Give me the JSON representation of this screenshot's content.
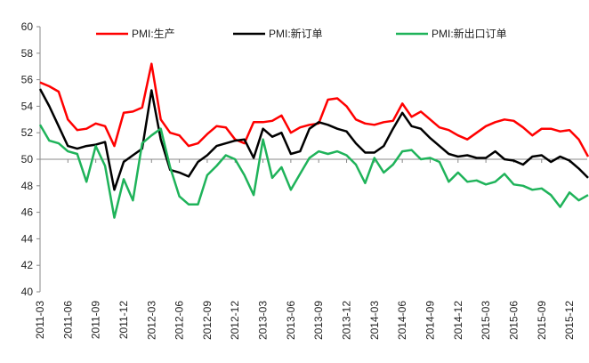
{
  "chart_data": {
    "type": "line",
    "categories": [
      "2011-03",
      null,
      null,
      "2011-06",
      null,
      null,
      "2011-09",
      null,
      null,
      "2011-12",
      null,
      null,
      "2012-03",
      null,
      null,
      "2012-06",
      null,
      null,
      "2012-09",
      null,
      null,
      "2012-12",
      null,
      null,
      "2013-03",
      null,
      null,
      "2013-06",
      null,
      null,
      "2013-09",
      null,
      null,
      "2013-12",
      null,
      null,
      "2014-03",
      null,
      null,
      "2014-06",
      null,
      null,
      "2014-09",
      null,
      null,
      "2014-12",
      null,
      null,
      "2015-03",
      null,
      null,
      "2015-06",
      null,
      null,
      "2015-09",
      null,
      null,
      "2015-12",
      null,
      null
    ],
    "series": [
      {
        "name": "PMI:生产",
        "color": "#ff0000",
        "values": [
          55.8,
          55.5,
          55.1,
          53.0,
          52.2,
          52.3,
          52.7,
          52.5,
          51.0,
          53.5,
          53.6,
          53.9,
          57.2,
          53.0,
          52.0,
          51.8,
          51.0,
          51.2,
          51.9,
          52.5,
          52.4,
          51.5,
          51.2,
          52.8,
          52.8,
          52.9,
          53.3,
          52.0,
          52.4,
          52.6,
          52.7,
          54.5,
          54.6,
          54.0,
          53.0,
          52.7,
          52.6,
          52.8,
          52.9,
          54.2,
          53.2,
          53.6,
          53.0,
          52.4,
          52.2,
          51.8,
          51.5,
          52.0,
          52.5,
          52.8,
          53.0,
          52.9,
          52.4,
          51.8,
          52.3,
          52.3,
          52.1,
          52.2,
          51.5,
          50.2
        ]
      },
      {
        "name": "PMI:新订单",
        "color": "#000000",
        "values": [
          55.3,
          54.0,
          52.5,
          51.0,
          50.8,
          51.0,
          51.1,
          51.3,
          47.7,
          49.8,
          50.3,
          50.8,
          55.2,
          51.5,
          49.2,
          49.0,
          48.7,
          49.8,
          50.3,
          51.0,
          51.2,
          51.4,
          51.5,
          50.1,
          52.3,
          51.7,
          52.0,
          50.4,
          50.6,
          52.3,
          52.8,
          52.6,
          52.3,
          52.1,
          51.2,
          50.5,
          50.5,
          51.0,
          52.3,
          53.5,
          52.5,
          52.3,
          51.6,
          51.0,
          50.4,
          50.2,
          50.3,
          50.1,
          50.1,
          50.6,
          50.0,
          49.9,
          49.6,
          50.2,
          50.3,
          49.8,
          50.2,
          49.9,
          49.3,
          48.6
        ]
      },
      {
        "name": "PMI:新出口订单",
        "color": "#1fb35a",
        "values": [
          52.6,
          51.4,
          51.2,
          50.6,
          50.4,
          48.3,
          51.0,
          49.5,
          45.6,
          48.5,
          46.9,
          51.2,
          51.8,
          52.3,
          49.4,
          47.2,
          46.6,
          46.6,
          48.8,
          49.5,
          50.3,
          50.0,
          48.8,
          47.3,
          51.5,
          48.6,
          49.4,
          47.7,
          48.9,
          50.1,
          50.6,
          50.4,
          50.6,
          50.3,
          49.6,
          48.2,
          50.1,
          49.0,
          49.6,
          50.6,
          50.7,
          50.0,
          50.1,
          49.8,
          48.3,
          49.0,
          48.3,
          48.4,
          48.1,
          48.3,
          48.9,
          48.1,
          48.0,
          47.7,
          47.8,
          47.3,
          46.4,
          47.5,
          46.9,
          47.3
        ]
      }
    ],
    "ylim": [
      40,
      60
    ],
    "yticks": [
      40,
      42,
      44,
      46,
      48,
      50,
      52,
      54,
      56,
      58,
      60
    ],
    "xaxis_crosses": 50,
    "legend": "top"
  }
}
